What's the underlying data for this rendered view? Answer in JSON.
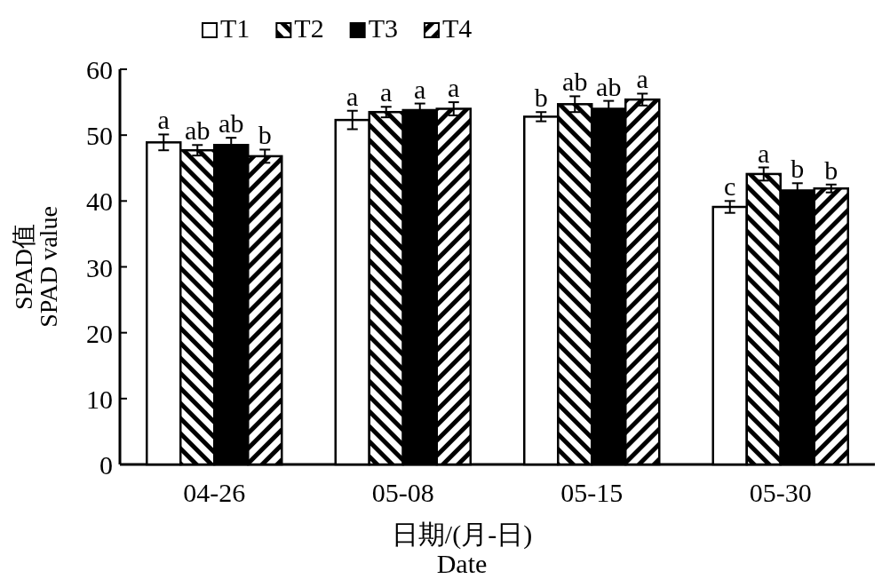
{
  "chart_data": {
    "type": "bar",
    "xlabel": "日期/(月-日)\nDate",
    "ylabel": "SPAD值\nSPAD value",
    "categories": [
      "04-26",
      "05-08",
      "05-15",
      "05-30"
    ],
    "series": [
      {
        "name": "T1",
        "color": "#ffffff",
        "values": [
          48.9,
          52.3,
          52.8,
          39.1
        ],
        "errors": [
          1.2,
          1.4,
          0.7,
          0.9
        ],
        "value_labels": [
          "a",
          "a",
          "b",
          "c"
        ]
      },
      {
        "name": "T2",
        "color": "#000000",
        "values": [
          47.7,
          53.5,
          54.7,
          44.1
        ],
        "errors": [
          0.8,
          0.8,
          1.2,
          1.0
        ],
        "value_labels": [
          "ab",
          "a",
          "ab",
          "a"
        ]
      },
      {
        "name": "T3",
        "color": "#000000",
        "values": [
          48.5,
          53.8,
          54.0,
          41.6
        ],
        "errors": [
          1.1,
          1.0,
          1.2,
          1.1
        ],
        "value_labels": [
          "ab",
          "a",
          "ab",
          "b"
        ]
      },
      {
        "name": "T4",
        "color": "#000000",
        "values": [
          46.8,
          54.0,
          55.4,
          41.9
        ],
        "errors": [
          1.0,
          1.0,
          0.9,
          0.6
        ],
        "value_labels": [
          "b",
          "a",
          "a",
          "b"
        ]
      }
    ],
    "ylim": [
      0,
      60
    ],
    "yticks": [
      0,
      10,
      20,
      30,
      40,
      50,
      60
    ],
    "legend": "top",
    "grid": false
  }
}
